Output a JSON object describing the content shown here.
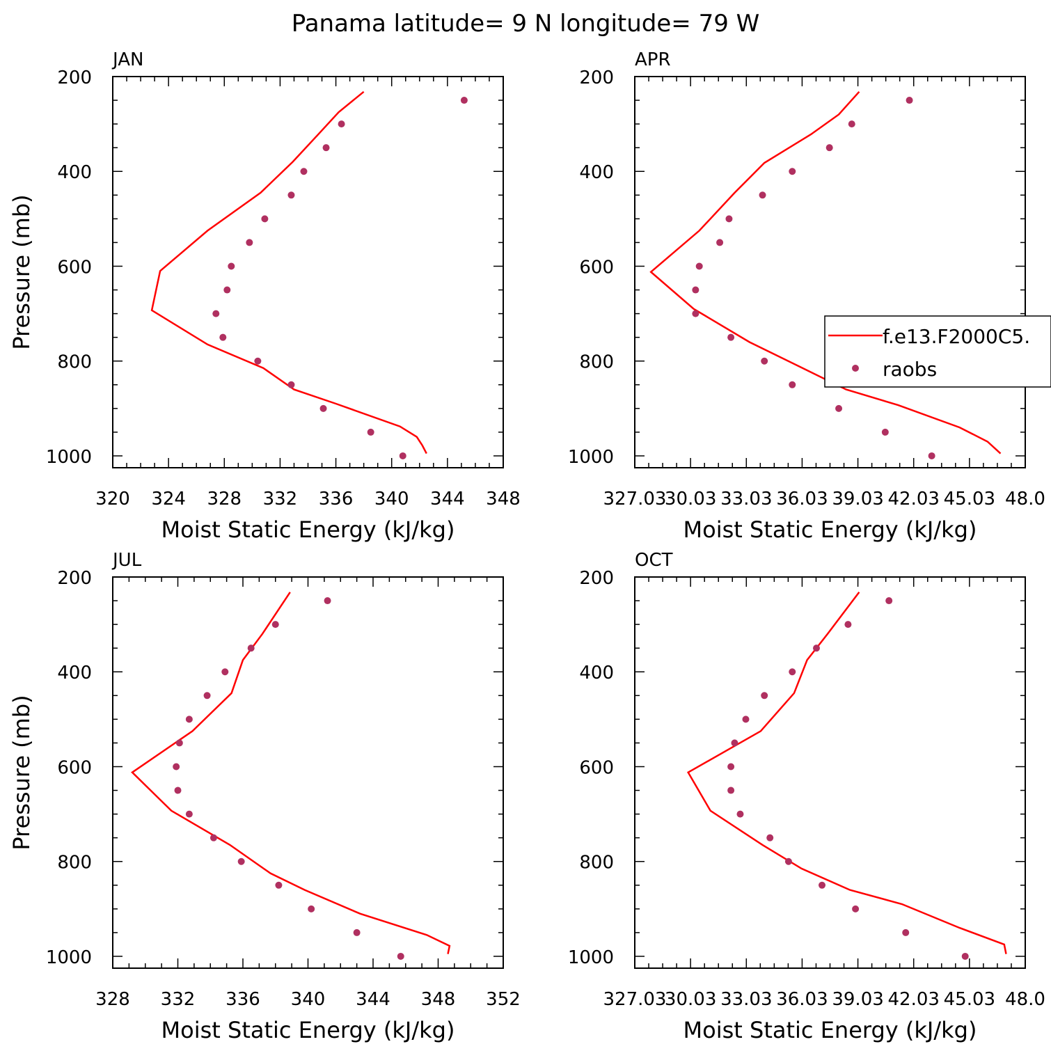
{
  "figure": {
    "title": "Panama  latitude= 9 N longitude= 79 W"
  },
  "legend": {
    "placement": "right",
    "line_label": "f.e13.F2000C5.",
    "dot_label": "raobs",
    "line_color": "#ff0000",
    "dot_color": "#b03060"
  },
  "chart_data": [
    {
      "type": "line",
      "panel": "JAN",
      "title": "JAN",
      "xlabel": "Moist Static Energy (kJ/kg)",
      "ylabel": "Pressure (mb)",
      "xlim": [
        320,
        348
      ],
      "ylim": [
        1025,
        200
      ],
      "xticks": [
        320,
        324,
        328,
        332,
        336,
        340,
        344,
        348
      ],
      "xtick_labels": [
        "320",
        "324",
        "328",
        "332",
        "336",
        "340",
        "344",
        "348"
      ],
      "yticks": [
        200,
        400,
        600,
        800,
        1000
      ],
      "ytick_labels": [
        "200",
        "400",
        "600",
        "800",
        "1000"
      ],
      "series": [
        {
          "name": "f.e13.F2000C5.",
          "style": "line",
          "x": [
            338.0,
            336.2,
            334.8,
            332.9,
            330.6,
            326.8,
            323.4,
            322.8,
            326.8,
            330.8,
            333.0,
            336.0,
            340.6,
            341.8,
            342.2,
            342.5
          ],
          "y": [
            232,
            275,
            320,
            380,
            445,
            525,
            610,
            693,
            765,
            815,
            860,
            890,
            938,
            960,
            978,
            995
          ]
        },
        {
          "name": "raobs",
          "style": "dots",
          "x": [
            345.2,
            336.4,
            335.3,
            333.7,
            332.8,
            330.9,
            329.8,
            328.5,
            328.2,
            327.4,
            327.9,
            330.4,
            332.8,
            335.1,
            338.5,
            340.8
          ],
          "y": [
            250,
            300,
            350,
            400,
            450,
            500,
            550,
            600,
            650,
            700,
            750,
            800,
            850,
            900,
            950,
            1000
          ]
        }
      ]
    },
    {
      "type": "line",
      "panel": "APR",
      "title": "APR",
      "xlabel": "Moist Static Energy (kJ/kg)",
      "ylabel": "",
      "xlim": [
        327.03,
        348.03
      ],
      "ylim": [
        1025,
        200
      ],
      "xticks": [
        327.03,
        330.03,
        333.03,
        336.03,
        339.03,
        342.03,
        345.03,
        348.03
      ],
      "xtick_labels": [
        "327.03",
        "30.03",
        "33.03",
        "36.03",
        "39.03",
        "42.03",
        "45.03",
        "48.0"
      ],
      "yticks": [
        200,
        400,
        600,
        800,
        1000
      ],
      "ytick_labels": [
        "200",
        "400",
        "600",
        "800",
        "1000"
      ],
      "series": [
        {
          "name": "f.e13.F2000C5.",
          "style": "line",
          "x": [
            339.1,
            338.0,
            336.5,
            334.0,
            332.4,
            330.5,
            327.9,
            330.2,
            333.2,
            335.8,
            338.4,
            341.2,
            344.5,
            346.0,
            346.7
          ],
          "y": [
            232,
            280,
            322,
            382,
            445,
            525,
            612,
            690,
            760,
            810,
            860,
            893,
            940,
            970,
            995
          ]
        },
        {
          "name": "raobs",
          "style": "dots",
          "x": [
            341.8,
            338.7,
            337.5,
            335.5,
            333.9,
            332.1,
            331.6,
            330.5,
            330.3,
            330.3,
            332.2,
            334.0,
            335.5,
            338.0,
            340.5,
            343.0
          ],
          "y": [
            250,
            300,
            350,
            400,
            450,
            500,
            550,
            600,
            650,
            700,
            750,
            800,
            850,
            900,
            950,
            1000
          ]
        }
      ]
    },
    {
      "type": "line",
      "panel": "JUL",
      "title": "JUL",
      "xlabel": "Moist Static Energy (kJ/kg)",
      "ylabel": "Pressure (mb)",
      "xlim": [
        328,
        352
      ],
      "ylim": [
        1025,
        200
      ],
      "xticks": [
        328,
        332,
        336,
        340,
        344,
        348,
        352
      ],
      "xtick_labels": [
        "328",
        "332",
        "336",
        "340",
        "344",
        "348",
        "352"
      ],
      "yticks": [
        200,
        400,
        600,
        800,
        1000
      ],
      "ytick_labels": [
        "200",
        "400",
        "600",
        "800",
        "1000"
      ],
      "series": [
        {
          "name": "f.e13.F2000C5.",
          "style": "line",
          "x": [
            338.9,
            337.2,
            336.0,
            335.3,
            332.9,
            329.2,
            331.6,
            335.2,
            337.7,
            339.8,
            343.2,
            347.3,
            348.7,
            348.6
          ],
          "y": [
            232,
            320,
            375,
            445,
            525,
            612,
            693,
            765,
            825,
            860,
            910,
            955,
            978,
            995
          ]
        },
        {
          "name": "raobs",
          "style": "dots",
          "x": [
            341.2,
            338.0,
            336.5,
            334.9,
            333.8,
            332.7,
            332.1,
            331.9,
            332.0,
            332.7,
            334.2,
            335.9,
            338.2,
            340.2,
            343.0,
            345.7
          ],
          "y": [
            250,
            300,
            350,
            400,
            450,
            500,
            550,
            600,
            650,
            700,
            750,
            800,
            850,
            900,
            950,
            1000
          ]
        }
      ]
    },
    {
      "type": "line",
      "panel": "OCT",
      "title": "OCT",
      "xlabel": "Moist Static Energy (kJ/kg)",
      "ylabel": "",
      "xlim": [
        327.03,
        348.03
      ],
      "ylim": [
        1025,
        200
      ],
      "xticks": [
        327.03,
        330.03,
        333.03,
        336.03,
        339.03,
        342.03,
        345.03,
        348.03
      ],
      "xtick_labels": [
        "327.03",
        "30.03",
        "33.03",
        "36.03",
        "39.03",
        "42.03",
        "45.03",
        "48.0"
      ],
      "yticks": [
        200,
        400,
        600,
        800,
        1000
      ],
      "ytick_labels": [
        "200",
        "400",
        "600",
        "800",
        "1000"
      ],
      "series": [
        {
          "name": "f.e13.F2000C5.",
          "style": "line",
          "x": [
            339.1,
            337.4,
            336.3,
            335.6,
            333.8,
            329.9,
            331.1,
            333.9,
            336.0,
            338.6,
            341.4,
            344.5,
            346.9,
            347.0
          ],
          "y": [
            232,
            320,
            375,
            445,
            525,
            612,
            693,
            765,
            815,
            860,
            890,
            940,
            975,
            995
          ]
        },
        {
          "name": "raobs",
          "style": "dots",
          "x": [
            340.7,
            338.5,
            336.8,
            335.5,
            334.0,
            333.0,
            332.4,
            332.2,
            332.2,
            332.7,
            334.3,
            335.3,
            337.1,
            338.9,
            341.6,
            344.8
          ],
          "y": [
            250,
            300,
            350,
            400,
            450,
            500,
            550,
            600,
            650,
            700,
            750,
            800,
            850,
            900,
            950,
            1000
          ]
        }
      ]
    }
  ]
}
